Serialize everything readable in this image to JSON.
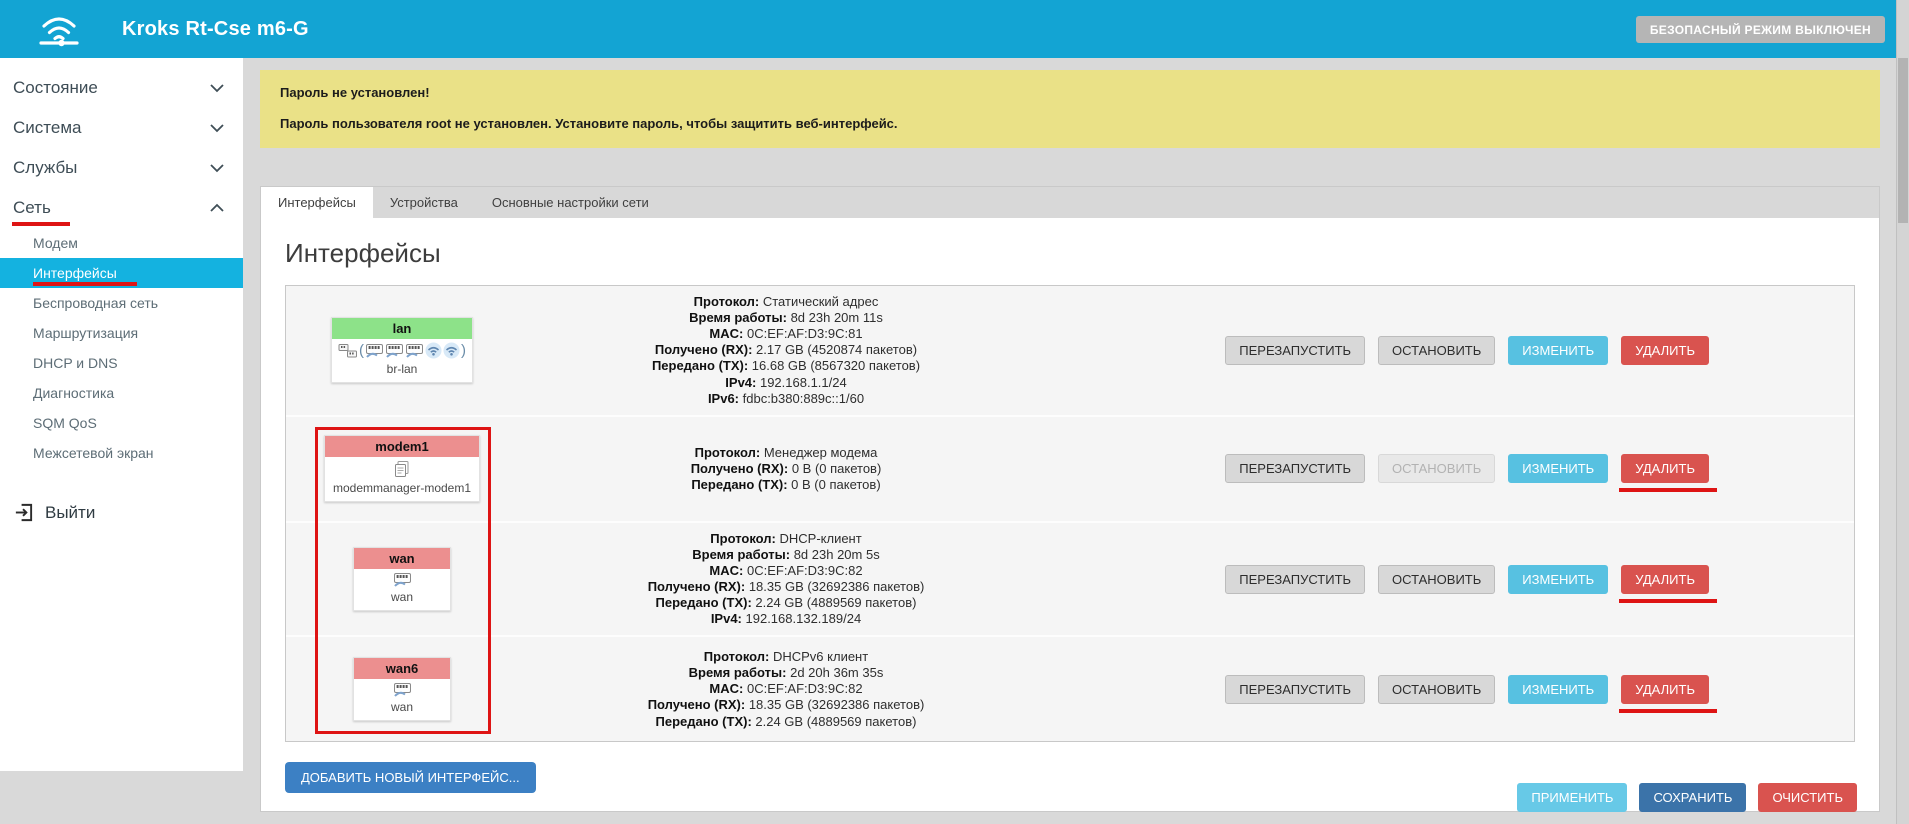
{
  "header": {
    "title": "Kroks Rt-Cse m6-G",
    "safe_mode_button": "БЕЗОПАСНЫЙ РЕЖИМ ВЫКЛЮЧЕН"
  },
  "sidebar": {
    "sections": [
      {
        "key": "status",
        "label": "Состояние",
        "expanded": false,
        "underlined": false
      },
      {
        "key": "system",
        "label": "Система",
        "expanded": false,
        "underlined": false
      },
      {
        "key": "services",
        "label": "Службы",
        "expanded": false,
        "underlined": false
      },
      {
        "key": "network",
        "label": "Сеть",
        "expanded": true,
        "underlined": true
      }
    ],
    "network_items": [
      {
        "key": "modem",
        "label": "Модем",
        "active": false,
        "underlined": false
      },
      {
        "key": "interfaces",
        "label": "Интерфейсы",
        "active": true,
        "underlined": true
      },
      {
        "key": "wireless",
        "label": "Беспроводная сеть",
        "active": false,
        "underlined": false
      },
      {
        "key": "routing",
        "label": "Маршрутизация",
        "active": false,
        "underlined": false
      },
      {
        "key": "dhcp-dns",
        "label": "DHCP и DNS",
        "active": false,
        "underlined": false
      },
      {
        "key": "diagnostics",
        "label": "Диагностика",
        "active": false,
        "underlined": false
      },
      {
        "key": "sqm-qos",
        "label": "SQM QoS",
        "active": false,
        "underlined": false
      },
      {
        "key": "firewall",
        "label": "Межсетевой экран",
        "active": false,
        "underlined": false
      }
    ],
    "logout_label": "Выйти"
  },
  "warning": {
    "title": "Пароль не установлен!",
    "message": "Пароль пользователя root не установлен. Установите пароль, чтобы защитить веб-интерфейс."
  },
  "tabs": [
    {
      "key": "interfaces",
      "label": "Интерфейсы",
      "active": true
    },
    {
      "key": "devices",
      "label": "Устройства",
      "active": false
    },
    {
      "key": "network-settings",
      "label": "Основные настройки сети",
      "active": false
    }
  ],
  "page_title": "Интерфейсы",
  "actions": {
    "restart": "ПЕРЕЗАПУСТИТЬ",
    "stop": "ОСТАНОВИТЬ",
    "edit": "ИЗМЕНИТЬ",
    "delete": "УДАЛИТЬ"
  },
  "interfaces": [
    {
      "name": "lan",
      "device": "br-lan",
      "badge_color": "#8DE289",
      "icon_prefix": "bridge",
      "icons": [
        "eth",
        "eth",
        "eth",
        "wifi",
        "wifi"
      ],
      "parens": true,
      "annotated": false,
      "stop_disabled": false,
      "delete_underlined": false,
      "details": [
        {
          "label": "Протокол",
          "value": "Статический адрес"
        },
        {
          "label": "Время работы",
          "value": "8d 23h 20m 11s"
        },
        {
          "label": "MAC",
          "value": "0C:EF:AF:D3:9C:81"
        },
        {
          "label": "Получено (RX)",
          "value": "2.17 GB (4520874 пакетов)"
        },
        {
          "label": "Передано (TX)",
          "value": "16.68 GB (8567320 пакетов)"
        },
        {
          "label": "IPv4",
          "value": "192.168.1.1/24"
        },
        {
          "label": "IPv6",
          "value": "fdbc:b380:889c::1/60"
        }
      ]
    },
    {
      "name": "modem1",
      "device": "modemmanager-modem1",
      "badge_color": "#EC8F8F",
      "icon_prefix": null,
      "icons": [
        "modem"
      ],
      "parens": false,
      "annotated": true,
      "stop_disabled": true,
      "delete_underlined": true,
      "details": [
        {
          "label": "Протокол",
          "value": "Менеджер модема"
        },
        {
          "label": "Получено (RX)",
          "value": "0 B (0 пакетов)"
        },
        {
          "label": "Передано (TX)",
          "value": "0 B (0 пакетов)"
        }
      ]
    },
    {
      "name": "wan",
      "device": "wan",
      "badge_color": "#EC8F8F",
      "icon_prefix": null,
      "icons": [
        "eth"
      ],
      "parens": false,
      "annotated": true,
      "stop_disabled": false,
      "delete_underlined": true,
      "details": [
        {
          "label": "Протокол",
          "value": "DHCP-клиент"
        },
        {
          "label": "Время работы",
          "value": "8d 23h 20m 5s"
        },
        {
          "label": "MAC",
          "value": "0C:EF:AF:D3:9C:82"
        },
        {
          "label": "Получено (RX)",
          "value": "18.35 GB (32692386 пакетов)"
        },
        {
          "label": "Передано (TX)",
          "value": "2.24 GB (4889569 пакетов)"
        },
        {
          "label": "IPv4",
          "value": "192.168.132.189/24"
        }
      ]
    },
    {
      "name": "wan6",
      "device": "wan",
      "badge_color": "#EC8F8F",
      "icon_prefix": null,
      "icons": [
        "eth"
      ],
      "parens": false,
      "annotated": true,
      "stop_disabled": false,
      "delete_underlined": true,
      "details": [
        {
          "label": "Протокол",
          "value": "DHCPv6 клиент"
        },
        {
          "label": "Время работы",
          "value": "2d 20h 36m 35s"
        },
        {
          "label": "MAC",
          "value": "0C:EF:AF:D3:9C:82"
        },
        {
          "label": "Получено (RX)",
          "value": "18.35 GB (32692386 пакетов)"
        },
        {
          "label": "Передано (TX)",
          "value": "2.24 GB (4889569 пакетов)"
        }
      ]
    }
  ],
  "add_button": "ДОБАВИТЬ НОВЫЙ ИНТЕРФЕЙС...",
  "footer": {
    "apply": "ПРИМЕНИТЬ",
    "save": "СОХРАНИТЬ",
    "reset": "ОЧИСТИТЬ"
  },
  "colors": {
    "header": "#13A4D3",
    "active_item": "#14B2E0",
    "warning_bg": "#EAE187",
    "badge_green": "#8DE289",
    "badge_pink": "#EC8F8F",
    "info_button": "#57C1E1",
    "danger_button": "#D9534F",
    "primary_button": "#3C80C4",
    "save_button": "#3B73A9",
    "apply_button": "#67C9E7",
    "annotation_red": "#DE1414"
  }
}
